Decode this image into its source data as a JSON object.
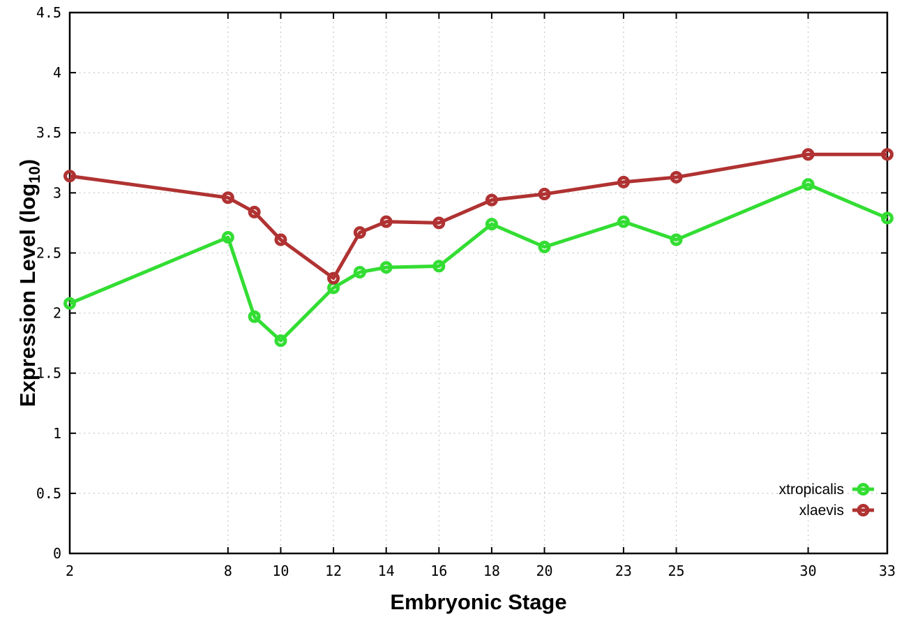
{
  "chart_data": {
    "type": "line",
    "title": "",
    "xlabel": "Embryonic Stage",
    "ylabel": "Expression Level (log10)",
    "ylabel_parts": {
      "prefix": "Expression Level (log",
      "sub": "10",
      "suffix": ")"
    },
    "x": [
      2,
      8,
      9,
      10,
      12,
      13,
      14,
      16,
      18,
      20,
      23,
      25,
      30,
      33
    ],
    "xlim": [
      2,
      33
    ],
    "ylim": [
      0,
      4.5
    ],
    "xtick_values": [
      2,
      8,
      10,
      12,
      14,
      16,
      18,
      20,
      23,
      25,
      30,
      33
    ],
    "xtick_labels": [
      "2",
      "8",
      "10",
      "12",
      "14",
      "16",
      "18",
      "20",
      "23",
      "25",
      "30",
      "33"
    ],
    "ytick_values": [
      0,
      0.5,
      1,
      1.5,
      2,
      2.5,
      3,
      3.5,
      4,
      4.5
    ],
    "ytick_labels": [
      "0",
      "0.5",
      "1",
      "1.5",
      "2",
      "2.5",
      "3",
      "3.5",
      "4",
      "4.5"
    ],
    "grid": true,
    "legend_position": "inside-bottom-right",
    "series": [
      {
        "name": "xtropicalis",
        "color": "#33dd33",
        "marker": "open-circle",
        "values": [
          2.08,
          2.63,
          1.97,
          1.77,
          2.21,
          2.34,
          2.38,
          2.39,
          2.74,
          2.55,
          2.76,
          2.61,
          3.07,
          2.79
        ]
      },
      {
        "name": "xlaevis",
        "color": "#b03232",
        "marker": "open-circle",
        "values": [
          3.14,
          2.96,
          2.84,
          2.61,
          2.29,
          2.67,
          2.76,
          2.75,
          2.94,
          2.99,
          3.09,
          3.13,
          3.32,
          3.32
        ]
      }
    ]
  },
  "style": {
    "background": "#ffffff",
    "grid_color": "#bfbfbf",
    "axis_color": "#000000",
    "text_color": "#000000"
  }
}
